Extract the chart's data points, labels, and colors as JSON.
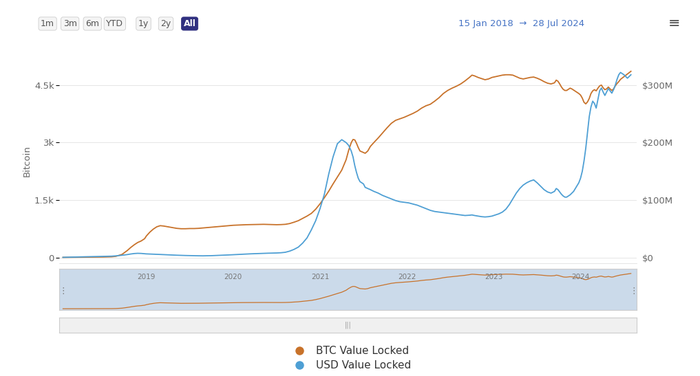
{
  "date_range": "15 Jan 2018  →  28 Jul 2024",
  "btc_color": "#c8722a",
  "usd_color": "#4e9fd4",
  "bg_color": "#ffffff",
  "grid_color": "#e5e5e5",
  "left_yticks": [
    0,
    1500,
    3000,
    4500
  ],
  "left_yticklabels": [
    "0",
    "1.5k",
    "3k",
    "4.5k"
  ],
  "right_yticks": [
    0,
    100000000,
    200000000,
    300000000
  ],
  "right_yticklabels": [
    "$0",
    "$100M",
    "$200M",
    "$300M"
  ],
  "left_ylabel": "Bitcoin",
  "ylim_btc": [
    -150,
    5200
  ],
  "ylim_usd": [
    -10000000,
    346666667
  ],
  "time_buttons": [
    "1m",
    "3m",
    "6m",
    "YTD",
    "1y",
    "2y",
    "All"
  ],
  "active_button": "All",
  "active_btn_color": "#303080",
  "inactive_btn_color": "#f5f5f5",
  "header_date_color": "#4472c4",
  "legend_btc": "BTC Value Locked",
  "legend_usd": "USD Value Locked",
  "btc_data": [
    [
      2018.04,
      2
    ],
    [
      2018.1,
      3
    ],
    [
      2018.2,
      5
    ],
    [
      2018.3,
      8
    ],
    [
      2018.5,
      12
    ],
    [
      2018.6,
      18
    ],
    [
      2018.65,
      30
    ],
    [
      2018.72,
      80
    ],
    [
      2018.78,
      180
    ],
    [
      2018.82,
      260
    ],
    [
      2018.86,
      330
    ],
    [
      2018.9,
      390
    ],
    [
      2018.94,
      430
    ],
    [
      2018.98,
      490
    ],
    [
      2019.0,
      560
    ],
    [
      2019.04,
      660
    ],
    [
      2019.08,
      740
    ],
    [
      2019.12,
      800
    ],
    [
      2019.16,
      830
    ],
    [
      2019.2,
      820
    ],
    [
      2019.25,
      800
    ],
    [
      2019.3,
      780
    ],
    [
      2019.35,
      760
    ],
    [
      2019.4,
      750
    ],
    [
      2019.45,
      750
    ],
    [
      2019.5,
      755
    ],
    [
      2019.55,
      755
    ],
    [
      2019.6,
      760
    ],
    [
      2019.65,
      770
    ],
    [
      2019.7,
      780
    ],
    [
      2019.75,
      790
    ],
    [
      2019.8,
      800
    ],
    [
      2019.85,
      810
    ],
    [
      2019.9,
      820
    ],
    [
      2019.95,
      830
    ],
    [
      2020.0,
      840
    ],
    [
      2020.05,
      845
    ],
    [
      2020.1,
      850
    ],
    [
      2020.15,
      855
    ],
    [
      2020.2,
      858
    ],
    [
      2020.25,
      860
    ],
    [
      2020.3,
      862
    ],
    [
      2020.35,
      865
    ],
    [
      2020.4,
      862
    ],
    [
      2020.45,
      858
    ],
    [
      2020.5,
      855
    ],
    [
      2020.55,
      858
    ],
    [
      2020.6,
      865
    ],
    [
      2020.65,
      885
    ],
    [
      2020.7,
      920
    ],
    [
      2020.75,
      960
    ],
    [
      2020.8,
      1020
    ],
    [
      2020.85,
      1080
    ],
    [
      2020.9,
      1150
    ],
    [
      2020.95,
      1260
    ],
    [
      2021.0,
      1400
    ],
    [
      2021.05,
      1560
    ],
    [
      2021.1,
      1730
    ],
    [
      2021.15,
      1920
    ],
    [
      2021.2,
      2100
    ],
    [
      2021.25,
      2280
    ],
    [
      2021.3,
      2550
    ],
    [
      2021.33,
      2800
    ],
    [
      2021.36,
      3000
    ],
    [
      2021.38,
      3080
    ],
    [
      2021.4,
      3070
    ],
    [
      2021.42,
      2980
    ],
    [
      2021.44,
      2870
    ],
    [
      2021.46,
      2780
    ],
    [
      2021.5,
      2740
    ],
    [
      2021.52,
      2720
    ],
    [
      2021.55,
      2780
    ],
    [
      2021.58,
      2900
    ],
    [
      2021.62,
      3000
    ],
    [
      2021.67,
      3120
    ],
    [
      2021.72,
      3250
    ],
    [
      2021.77,
      3380
    ],
    [
      2021.82,
      3500
    ],
    [
      2021.87,
      3580
    ],
    [
      2021.92,
      3620
    ],
    [
      2021.97,
      3660
    ],
    [
      2022.02,
      3710
    ],
    [
      2022.07,
      3760
    ],
    [
      2022.12,
      3820
    ],
    [
      2022.17,
      3900
    ],
    [
      2022.22,
      3960
    ],
    [
      2022.27,
      4000
    ],
    [
      2022.32,
      4080
    ],
    [
      2022.37,
      4170
    ],
    [
      2022.42,
      4280
    ],
    [
      2022.47,
      4360
    ],
    [
      2022.52,
      4420
    ],
    [
      2022.57,
      4470
    ],
    [
      2022.62,
      4530
    ],
    [
      2022.67,
      4610
    ],
    [
      2022.72,
      4700
    ],
    [
      2022.75,
      4760
    ],
    [
      2022.78,
      4740
    ],
    [
      2022.82,
      4700
    ],
    [
      2022.86,
      4670
    ],
    [
      2022.9,
      4640
    ],
    [
      2022.94,
      4660
    ],
    [
      2022.98,
      4700
    ],
    [
      2023.02,
      4720
    ],
    [
      2023.06,
      4740
    ],
    [
      2023.1,
      4760
    ],
    [
      2023.14,
      4770
    ],
    [
      2023.18,
      4770
    ],
    [
      2023.22,
      4760
    ],
    [
      2023.26,
      4720
    ],
    [
      2023.3,
      4680
    ],
    [
      2023.34,
      4660
    ],
    [
      2023.38,
      4680
    ],
    [
      2023.42,
      4700
    ],
    [
      2023.46,
      4710
    ],
    [
      2023.5,
      4680
    ],
    [
      2023.54,
      4640
    ],
    [
      2023.58,
      4590
    ],
    [
      2023.62,
      4550
    ],
    [
      2023.66,
      4530
    ],
    [
      2023.7,
      4560
    ],
    [
      2023.72,
      4630
    ],
    [
      2023.74,
      4600
    ],
    [
      2023.76,
      4530
    ],
    [
      2023.78,
      4450
    ],
    [
      2023.8,
      4390
    ],
    [
      2023.82,
      4360
    ],
    [
      2023.84,
      4360
    ],
    [
      2023.86,
      4390
    ],
    [
      2023.88,
      4420
    ],
    [
      2023.9,
      4400
    ],
    [
      2023.92,
      4370
    ],
    [
      2023.94,
      4340
    ],
    [
      2023.96,
      4310
    ],
    [
      2023.98,
      4280
    ],
    [
      2024.0,
      4240
    ],
    [
      2024.02,
      4160
    ],
    [
      2024.04,
      4050
    ],
    [
      2024.06,
      4010
    ],
    [
      2024.08,
      4060
    ],
    [
      2024.1,
      4150
    ],
    [
      2024.12,
      4280
    ],
    [
      2024.14,
      4350
    ],
    [
      2024.16,
      4380
    ],
    [
      2024.18,
      4350
    ],
    [
      2024.2,
      4420
    ],
    [
      2024.22,
      4480
    ],
    [
      2024.24,
      4500
    ],
    [
      2024.26,
      4430
    ],
    [
      2024.28,
      4380
    ],
    [
      2024.3,
      4400
    ],
    [
      2024.32,
      4450
    ],
    [
      2024.34,
      4400
    ],
    [
      2024.36,
      4360
    ],
    [
      2024.38,
      4400
    ],
    [
      2024.4,
      4480
    ],
    [
      2024.42,
      4540
    ],
    [
      2024.44,
      4590
    ],
    [
      2024.46,
      4650
    ],
    [
      2024.5,
      4720
    ],
    [
      2024.54,
      4790
    ],
    [
      2024.58,
      4860
    ]
  ],
  "usd_data": [
    [
      2018.04,
      200000
    ],
    [
      2018.1,
      400000
    ],
    [
      2018.2,
      800000
    ],
    [
      2018.3,
      1200000
    ],
    [
      2018.5,
      1800000
    ],
    [
      2018.6,
      2200000
    ],
    [
      2018.65,
      2800000
    ],
    [
      2018.72,
      3800000
    ],
    [
      2018.78,
      5000000
    ],
    [
      2018.82,
      6000000
    ],
    [
      2018.86,
      6800000
    ],
    [
      2018.9,
      7200000
    ],
    [
      2018.94,
      7000000
    ],
    [
      2018.98,
      6500000
    ],
    [
      2019.0,
      6200000
    ],
    [
      2019.04,
      5900000
    ],
    [
      2019.08,
      5700000
    ],
    [
      2019.12,
      5500000
    ],
    [
      2019.16,
      5200000
    ],
    [
      2019.2,
      4900000
    ],
    [
      2019.25,
      4600000
    ],
    [
      2019.3,
      4200000
    ],
    [
      2019.35,
      3900000
    ],
    [
      2019.4,
      3600000
    ],
    [
      2019.45,
      3400000
    ],
    [
      2019.5,
      3200000
    ],
    [
      2019.55,
      3000000
    ],
    [
      2019.6,
      2900000
    ],
    [
      2019.65,
      2800000
    ],
    [
      2019.7,
      2900000
    ],
    [
      2019.75,
      3100000
    ],
    [
      2019.8,
      3400000
    ],
    [
      2019.85,
      3700000
    ],
    [
      2019.9,
      4000000
    ],
    [
      2019.95,
      4400000
    ],
    [
      2020.0,
      4800000
    ],
    [
      2020.05,
      5200000
    ],
    [
      2020.1,
      5600000
    ],
    [
      2020.15,
      6000000
    ],
    [
      2020.2,
      6300000
    ],
    [
      2020.25,
      6600000
    ],
    [
      2020.3,
      6900000
    ],
    [
      2020.35,
      7200000
    ],
    [
      2020.4,
      7400000
    ],
    [
      2020.45,
      7600000
    ],
    [
      2020.5,
      7800000
    ],
    [
      2020.55,
      8200000
    ],
    [
      2020.6,
      9000000
    ],
    [
      2020.65,
      11000000
    ],
    [
      2020.7,
      14000000
    ],
    [
      2020.75,
      18000000
    ],
    [
      2020.8,
      25000000
    ],
    [
      2020.85,
      34000000
    ],
    [
      2020.9,
      48000000
    ],
    [
      2020.95,
      64000000
    ],
    [
      2021.0,
      85000000
    ],
    [
      2021.05,
      110000000
    ],
    [
      2021.1,
      145000000
    ],
    [
      2021.15,
      175000000
    ],
    [
      2021.2,
      198000000
    ],
    [
      2021.25,
      205000000
    ],
    [
      2021.3,
      200000000
    ],
    [
      2021.33,
      195000000
    ],
    [
      2021.36,
      185000000
    ],
    [
      2021.38,
      175000000
    ],
    [
      2021.4,
      160000000
    ],
    [
      2021.42,
      148000000
    ],
    [
      2021.44,
      138000000
    ],
    [
      2021.46,
      132000000
    ],
    [
      2021.5,
      128000000
    ],
    [
      2021.52,
      122000000
    ],
    [
      2021.55,
      120000000
    ],
    [
      2021.58,
      118000000
    ],
    [
      2021.62,
      115000000
    ],
    [
      2021.67,
      112000000
    ],
    [
      2021.72,
      108000000
    ],
    [
      2021.77,
      105000000
    ],
    [
      2021.82,
      102000000
    ],
    [
      2021.87,
      99000000
    ],
    [
      2021.92,
      97000000
    ],
    [
      2021.97,
      96000000
    ],
    [
      2022.02,
      95000000
    ],
    [
      2022.07,
      93000000
    ],
    [
      2022.12,
      91000000
    ],
    [
      2022.17,
      88000000
    ],
    [
      2022.22,
      85000000
    ],
    [
      2022.27,
      82000000
    ],
    [
      2022.32,
      80000000
    ],
    [
      2022.37,
      79000000
    ],
    [
      2022.42,
      78000000
    ],
    [
      2022.47,
      77000000
    ],
    [
      2022.52,
      76000000
    ],
    [
      2022.57,
      75000000
    ],
    [
      2022.62,
      74000000
    ],
    [
      2022.67,
      73000000
    ],
    [
      2022.72,
      73500000
    ],
    [
      2022.75,
      74000000
    ],
    [
      2022.78,
      73000000
    ],
    [
      2022.82,
      72000000
    ],
    [
      2022.86,
      71000000
    ],
    [
      2022.9,
      70500000
    ],
    [
      2022.94,
      71000000
    ],
    [
      2022.98,
      72000000
    ],
    [
      2023.02,
      74000000
    ],
    [
      2023.06,
      76000000
    ],
    [
      2023.1,
      79000000
    ],
    [
      2023.14,
      84000000
    ],
    [
      2023.18,
      92000000
    ],
    [
      2023.22,
      102000000
    ],
    [
      2023.26,
      112000000
    ],
    [
      2023.3,
      120000000
    ],
    [
      2023.34,
      126000000
    ],
    [
      2023.38,
      130000000
    ],
    [
      2023.42,
      133000000
    ],
    [
      2023.46,
      135000000
    ],
    [
      2023.5,
      130000000
    ],
    [
      2023.54,
      124000000
    ],
    [
      2023.58,
      118000000
    ],
    [
      2023.62,
      114000000
    ],
    [
      2023.66,
      112000000
    ],
    [
      2023.7,
      115000000
    ],
    [
      2023.72,
      120000000
    ],
    [
      2023.74,
      118000000
    ],
    [
      2023.76,
      114000000
    ],
    [
      2023.78,
      110000000
    ],
    [
      2023.8,
      107000000
    ],
    [
      2023.82,
      105000000
    ],
    [
      2023.84,
      105000000
    ],
    [
      2023.86,
      107000000
    ],
    [
      2023.88,
      109000000
    ],
    [
      2023.9,
      112000000
    ],
    [
      2023.92,
      115000000
    ],
    [
      2023.94,
      120000000
    ],
    [
      2023.96,
      125000000
    ],
    [
      2023.98,
      130000000
    ],
    [
      2024.0,
      138000000
    ],
    [
      2024.02,
      150000000
    ],
    [
      2024.04,
      168000000
    ],
    [
      2024.06,
      190000000
    ],
    [
      2024.08,
      218000000
    ],
    [
      2024.1,
      245000000
    ],
    [
      2024.12,
      262000000
    ],
    [
      2024.14,
      272000000
    ],
    [
      2024.16,
      268000000
    ],
    [
      2024.18,
      260000000
    ],
    [
      2024.2,
      275000000
    ],
    [
      2024.22,
      290000000
    ],
    [
      2024.24,
      295000000
    ],
    [
      2024.26,
      288000000
    ],
    [
      2024.28,
      282000000
    ],
    [
      2024.3,
      288000000
    ],
    [
      2024.32,
      294000000
    ],
    [
      2024.34,
      290000000
    ],
    [
      2024.36,
      286000000
    ],
    [
      2024.38,
      292000000
    ],
    [
      2024.4,
      300000000
    ],
    [
      2024.42,
      310000000
    ],
    [
      2024.44,
      318000000
    ],
    [
      2024.46,
      322000000
    ],
    [
      2024.5,
      318000000
    ],
    [
      2024.54,
      312000000
    ],
    [
      2024.58,
      318000000
    ]
  ],
  "minimap_bg": "#dce6f0",
  "minimap_highlight": "#c8d8ea",
  "xtick_years": [
    2019,
    2020,
    2021,
    2022,
    2023,
    2024
  ],
  "xmin": 2018.0,
  "xmax": 2024.65
}
